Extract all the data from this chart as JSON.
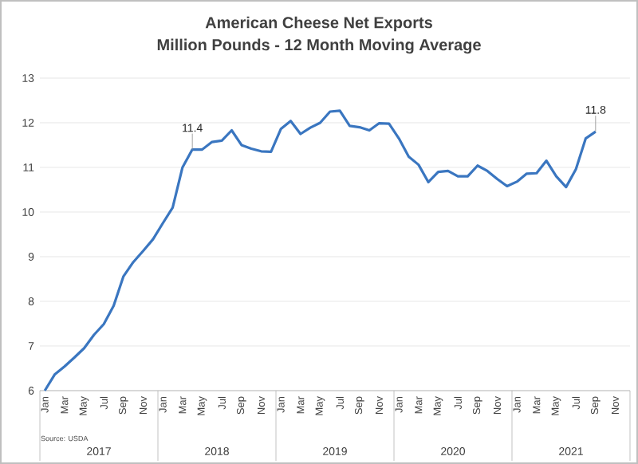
{
  "chart_data": {
    "type": "line",
    "title": "American Cheese Net Exports",
    "subtitle": "Million Pounds - 12 Month Moving Average",
    "categories": [
      "Jan",
      null,
      "Mar",
      null,
      "May",
      null,
      "Jul",
      null,
      "Sep",
      null,
      "Nov",
      null,
      "Jan",
      null,
      "Mar",
      null,
      "May",
      null,
      "Jul",
      null,
      "Sep",
      null,
      "Nov",
      null,
      "Jan",
      null,
      "Mar",
      null,
      "May",
      null,
      "Jul",
      null,
      "Sep",
      null,
      "Nov",
      null,
      "Jan",
      null,
      "Mar",
      null,
      "May",
      null,
      "Jul",
      null,
      "Sep",
      null,
      "Nov",
      null,
      "Jan",
      null,
      "Mar",
      null,
      "May",
      null,
      "Jul",
      null,
      "Sep",
      null,
      "Nov",
      null
    ],
    "series": [
      {
        "color": "#3a76c0",
        "values": [
          6.0,
          6.36,
          6.54,
          6.74,
          6.95,
          7.25,
          7.49,
          7.9,
          8.56,
          8.88,
          9.13,
          9.39,
          9.75,
          10.1,
          11.0,
          11.4,
          11.4,
          11.57,
          11.6,
          11.83,
          11.5,
          11.42,
          11.36,
          11.35,
          11.86,
          12.04,
          11.75,
          11.89,
          12.0,
          12.25,
          12.27,
          11.93,
          11.9,
          11.83,
          11.99,
          11.98,
          11.65,
          11.24,
          11.06,
          10.67,
          10.9,
          10.92,
          10.8,
          10.8,
          11.04,
          10.92,
          10.74,
          10.58,
          10.68,
          10.86,
          10.87,
          11.15,
          10.8,
          10.56,
          10.96,
          11.65,
          11.8,
          null,
          null,
          null
        ],
        "value_labels": [
          null,
          null,
          null,
          null,
          null,
          null,
          null,
          null,
          null,
          null,
          null,
          null,
          null,
          null,
          null,
          "11.4",
          null,
          null,
          null,
          null,
          null,
          null,
          null,
          null,
          null,
          null,
          null,
          null,
          null,
          null,
          null,
          null,
          null,
          null,
          null,
          null,
          null,
          null,
          null,
          null,
          null,
          null,
          null,
          null,
          null,
          null,
          null,
          null,
          null,
          null,
          null,
          null,
          null,
          null,
          null,
          null,
          "11.8",
          null,
          null,
          null
        ]
      }
    ],
    "ylim": [
      6,
      13
    ],
    "yticks": [
      6,
      7,
      8,
      9,
      10,
      11,
      12,
      13
    ],
    "grid": "y",
    "marker": "none",
    "line_style": "solid",
    "annotations": [
      "Source: USDA",
      "2017",
      "2018",
      "2019",
      "2020",
      "2021"
    ]
  }
}
